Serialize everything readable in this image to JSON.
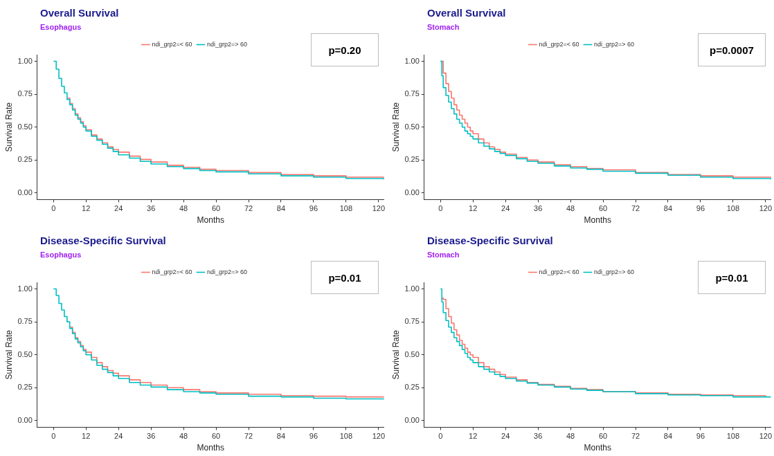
{
  "chart_data": [
    {
      "type": "step",
      "title": "Overall Survival",
      "subtitle": "Esophagus",
      "xlabel": "Months",
      "ylabel": "Survival Rate",
      "annotations": [
        "p=0.20"
      ],
      "legend": "top",
      "grid": false,
      "xlim": [
        -6,
        122
      ],
      "xticks": [
        0,
        12,
        24,
        36,
        48,
        60,
        72,
        84,
        96,
        108,
        120
      ],
      "ylim": [
        -0.05,
        1.05
      ],
      "yticks": [
        {
          "value": 0,
          "label": "0.00"
        },
        {
          "value": 0.25,
          "label": "0.25"
        },
        {
          "value": 0.5,
          "label": "0.50"
        },
        {
          "value": 0.75,
          "label": "0.75"
        },
        {
          "value": 1,
          "label": "1.00"
        }
      ],
      "series": [
        {
          "name": "ndi_grp2=< 60",
          "color": "#f8766d",
          "x": [
            5,
            6,
            7,
            8,
            9,
            10,
            11,
            12,
            14,
            16,
            18,
            20,
            22,
            24,
            28,
            32,
            36,
            42,
            48,
            54,
            60,
            72,
            84,
            96,
            108,
            122
          ],
          "values": [
            0.72,
            0.68,
            0.64,
            0.6,
            0.57,
            0.54,
            0.51,
            0.48,
            0.44,
            0.41,
            0.38,
            0.35,
            0.33,
            0.31,
            0.28,
            0.255,
            0.235,
            0.21,
            0.195,
            0.18,
            0.17,
            0.155,
            0.14,
            0.13,
            0.12,
            0.11
          ]
        },
        {
          "name": "ndi_grp2=> 60",
          "color": "#00bfc4",
          "x": [
            0,
            1,
            2,
            3,
            4,
            5,
            6,
            7,
            8,
            9,
            10,
            11,
            12,
            14,
            16,
            18,
            20,
            22,
            24,
            28,
            32,
            36,
            42,
            48,
            54,
            60,
            72,
            84,
            96,
            108,
            122
          ],
          "values": [
            1.0,
            0.94,
            0.87,
            0.81,
            0.76,
            0.71,
            0.67,
            0.63,
            0.59,
            0.56,
            0.53,
            0.5,
            0.47,
            0.43,
            0.4,
            0.37,
            0.34,
            0.315,
            0.29,
            0.265,
            0.24,
            0.22,
            0.2,
            0.185,
            0.17,
            0.16,
            0.145,
            0.13,
            0.12,
            0.11,
            0.1
          ]
        }
      ]
    },
    {
      "type": "step",
      "title": "Overall Survival",
      "subtitle": "Stomach",
      "xlabel": "Months",
      "ylabel": "Survival Rate",
      "annotations": [
        "p=0.0007"
      ],
      "legend": "top",
      "grid": false,
      "xlim": [
        -6,
        122
      ],
      "xticks": [
        0,
        12,
        24,
        36,
        48,
        60,
        72,
        84,
        96,
        108,
        120
      ],
      "ylim": [
        -0.05,
        1.05
      ],
      "yticks": [
        {
          "value": 0,
          "label": "0.00"
        },
        {
          "value": 0.25,
          "label": "0.25"
        },
        {
          "value": 0.5,
          "label": "0.50"
        },
        {
          "value": 0.75,
          "label": "0.75"
        },
        {
          "value": 1,
          "label": "1.00"
        }
      ],
      "series": [
        {
          "name": "ndi_grp2=< 60",
          "color": "#f8766d",
          "x": [
            0,
            1,
            2,
            3,
            4,
            5,
            6,
            7,
            8,
            9,
            10,
            11,
            12,
            14,
            16,
            18,
            20,
            22,
            24,
            28,
            32,
            36,
            42,
            48,
            54,
            60,
            72,
            84,
            96,
            108,
            122
          ],
          "values": [
            1.0,
            0.91,
            0.83,
            0.77,
            0.72,
            0.67,
            0.63,
            0.59,
            0.56,
            0.53,
            0.5,
            0.47,
            0.45,
            0.41,
            0.38,
            0.35,
            0.33,
            0.31,
            0.295,
            0.27,
            0.25,
            0.235,
            0.215,
            0.2,
            0.185,
            0.175,
            0.155,
            0.14,
            0.13,
            0.12,
            0.11
          ]
        },
        {
          "name": "ndi_grp2=> 60",
          "color": "#00bfc4",
          "x": [
            0,
            0.5,
            1,
            2,
            3,
            4,
            5,
            6,
            7,
            8,
            9,
            10,
            11,
            12,
            14,
            16,
            18,
            20,
            22,
            24,
            28,
            32,
            36,
            42,
            48,
            54,
            60,
            72,
            84,
            96,
            108,
            122
          ],
          "values": [
            1.0,
            0.89,
            0.8,
            0.74,
            0.69,
            0.64,
            0.6,
            0.56,
            0.53,
            0.5,
            0.47,
            0.45,
            0.43,
            0.41,
            0.38,
            0.355,
            0.335,
            0.315,
            0.3,
            0.285,
            0.26,
            0.24,
            0.225,
            0.205,
            0.19,
            0.18,
            0.165,
            0.15,
            0.135,
            0.12,
            0.11,
            0.1
          ]
        }
      ]
    },
    {
      "type": "step",
      "title": "Disease-Specific Survival",
      "subtitle": "Esophagus",
      "xlabel": "Months",
      "ylabel": "Survival Rate",
      "annotations": [
        "p=0.01"
      ],
      "legend": "top",
      "grid": false,
      "xlim": [
        -6,
        122
      ],
      "xticks": [
        0,
        12,
        24,
        36,
        48,
        60,
        72,
        84,
        96,
        108,
        120
      ],
      "ylim": [
        -0.05,
        1.05
      ],
      "yticks": [
        {
          "value": 0,
          "label": "0.00"
        },
        {
          "value": 0.25,
          "label": "0.25"
        },
        {
          "value": 0.5,
          "label": "0.50"
        },
        {
          "value": 0.75,
          "label": "0.75"
        },
        {
          "value": 1,
          "label": "1.00"
        }
      ],
      "series": [
        {
          "name": "ndi_grp2=< 60",
          "color": "#f8766d",
          "x": [
            6,
            7,
            8,
            9,
            10,
            11,
            12,
            14,
            16,
            18,
            20,
            22,
            24,
            28,
            32,
            36,
            42,
            48,
            54,
            60,
            72,
            84,
            96,
            108,
            122
          ],
          "values": [
            0.71,
            0.67,
            0.63,
            0.6,
            0.57,
            0.54,
            0.52,
            0.48,
            0.44,
            0.41,
            0.38,
            0.36,
            0.34,
            0.31,
            0.29,
            0.27,
            0.25,
            0.235,
            0.22,
            0.21,
            0.2,
            0.19,
            0.185,
            0.18,
            0.175
          ]
        },
        {
          "name": "ndi_grp2=> 60",
          "color": "#00bfc4",
          "x": [
            0,
            1,
            2,
            3,
            4,
            5,
            6,
            7,
            8,
            9,
            10,
            11,
            12,
            14,
            16,
            18,
            20,
            22,
            24,
            28,
            32,
            36,
            42,
            48,
            54,
            60,
            72,
            84,
            96,
            108,
            122
          ],
          "values": [
            1.0,
            0.95,
            0.89,
            0.84,
            0.79,
            0.75,
            0.7,
            0.66,
            0.62,
            0.59,
            0.56,
            0.53,
            0.5,
            0.46,
            0.42,
            0.39,
            0.365,
            0.34,
            0.32,
            0.29,
            0.27,
            0.255,
            0.235,
            0.22,
            0.21,
            0.2,
            0.185,
            0.18,
            0.17,
            0.165,
            0.16
          ]
        }
      ]
    },
    {
      "type": "step",
      "title": "Disease-Specific Survival",
      "subtitle": "Stomach",
      "xlabel": "Months",
      "ylabel": "Survival Rate",
      "annotations": [
        "p=0.01"
      ],
      "legend": "top",
      "grid": false,
      "xlim": [
        -6,
        122
      ],
      "xticks": [
        0,
        12,
        24,
        36,
        48,
        60,
        72,
        84,
        96,
        108,
        120
      ],
      "ylim": [
        -0.05,
        1.05
      ],
      "yticks": [
        {
          "value": 0,
          "label": "0.00"
        },
        {
          "value": 0.25,
          "label": "0.25"
        },
        {
          "value": 0.5,
          "label": "0.50"
        },
        {
          "value": 0.75,
          "label": "0.75"
        },
        {
          "value": 1,
          "label": "1.00"
        }
      ],
      "series": [
        {
          "name": "ndi_grp2=< 60",
          "color": "#f8766d",
          "x": [
            0.5,
            1,
            2,
            3,
            4,
            5,
            6,
            7,
            8,
            9,
            10,
            11,
            12,
            14,
            16,
            18,
            20,
            22,
            24,
            28,
            32,
            36,
            42,
            48,
            54,
            60,
            72,
            84,
            96,
            108,
            120
          ],
          "values": [
            0.93,
            0.92,
            0.85,
            0.79,
            0.74,
            0.69,
            0.65,
            0.61,
            0.58,
            0.55,
            0.52,
            0.5,
            0.48,
            0.44,
            0.41,
            0.39,
            0.37,
            0.35,
            0.33,
            0.31,
            0.29,
            0.275,
            0.26,
            0.245,
            0.235,
            0.22,
            0.21,
            0.2,
            0.195,
            0.19,
            0.185
          ]
        },
        {
          "name": "ndi_grp2=> 60",
          "color": "#00bfc4",
          "x": [
            0,
            0.5,
            1,
            2,
            3,
            4,
            5,
            6,
            7,
            8,
            9,
            10,
            11,
            12,
            14,
            16,
            18,
            20,
            22,
            24,
            28,
            32,
            36,
            42,
            48,
            54,
            60,
            72,
            84,
            96,
            108,
            122
          ],
          "values": [
            1.0,
            0.9,
            0.82,
            0.76,
            0.71,
            0.67,
            0.63,
            0.6,
            0.57,
            0.54,
            0.51,
            0.48,
            0.46,
            0.44,
            0.41,
            0.39,
            0.37,
            0.35,
            0.335,
            0.32,
            0.3,
            0.285,
            0.27,
            0.255,
            0.24,
            0.23,
            0.22,
            0.205,
            0.195,
            0.19,
            0.18,
            0.18
          ]
        }
      ]
    }
  ]
}
